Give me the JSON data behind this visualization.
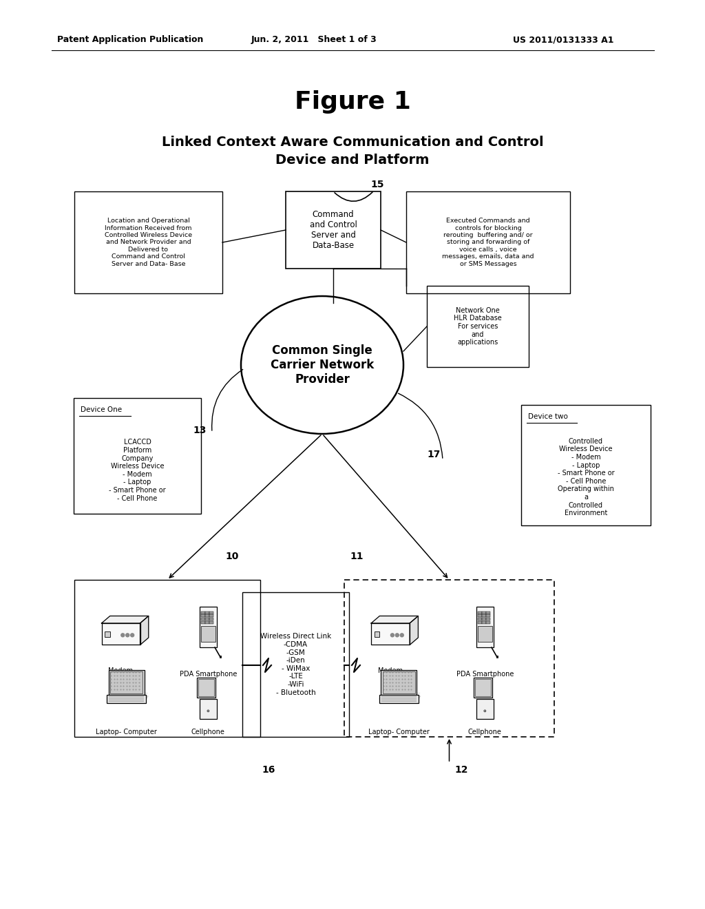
{
  "bg_color": "#ffffff",
  "header_left": "Patent Application Publication",
  "header_center": "Jun. 2, 2011   Sheet 1 of 3",
  "header_right": "US 2011/0131333 A1",
  "figure_title": "Figure 1",
  "subtitle_line1": "Linked Context Aware Communication and Control",
  "subtitle_line2": "Device and Platform",
  "cmd_text": "Command\nand Control\nServer and\nData-Base",
  "left_info_text": "Location and Operational\nInformation Received from\nControlled Wireless Device\nand Network Provider and\nDelivered to\nCommand and Control\nServer and Data- Base",
  "right_info_text": "Executed Commands and\ncontrols for blocking\nrerouting  buffering and/ or\nstoring and forwarding of\nvoice calls , voice\nmessages, emails, data and\nor SMS Messages",
  "network_text": "Common Single\nCarrier Network\nProvider",
  "hlr_text": "Network One\nHLR Database\nFor services\nand\napplications",
  "d1_title": "Device One",
  "d1_body": "LCACCD\nPlatform\nCompany\nWireless Device\n- Modem\n- Laptop\n- Smart Phone or\n- Cell Phone",
  "d2_title": "Device two",
  "d2_body": "Controlled\nWireless Device\n- Modem\n- Laptop\n- Smart Phone or\n- Cell Phone\nOperating within\na\nControlled\nEnvironment",
  "wl_text": "Wireless Direct Link\n-CDMA\n-GSM\n-iDen\n- WiMax\n-LTE\n-WiFi\n- Bluetooth"
}
